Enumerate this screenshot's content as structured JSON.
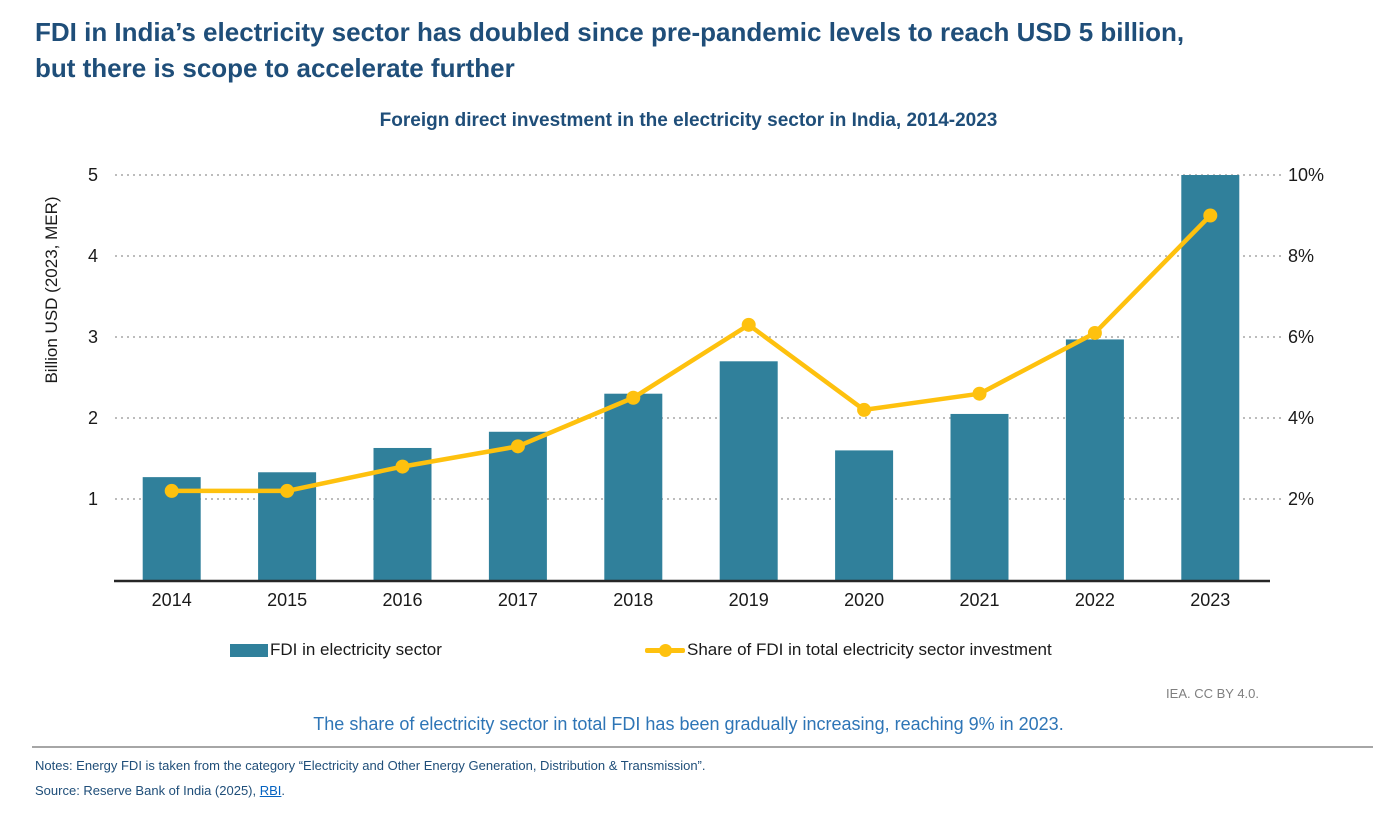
{
  "page": {
    "title_line1": "FDI in India’s electricity sector has doubled since pre-pandemic levels to reach USD 5 billion,",
    "title_line2": "but there is scope to accelerate further",
    "credit": "IEA. CC BY 4.0.",
    "caption": "The share of electricity sector in total FDI has been gradually increasing, reaching 9% in 2023.",
    "notes": "Notes: Energy FDI is taken from the category “Electricity and Other Energy Generation, Distribution & Transmission”.",
    "source_prefix": "Source: Reserve Bank of India (2025), ",
    "source_link": "RBI",
    "source_suffix": "."
  },
  "colors": {
    "bar": "#30809B",
    "line": "#FEC10E",
    "grid": "#A6A6A6",
    "axis": "#262626",
    "title_blue": "#1F4E79",
    "caption_blue": "#2E75B6"
  },
  "chart_data": {
    "type": "bar",
    "combo": "bar+line",
    "title": "Foreign direct investment in the electricity sector in India, 2014-2023",
    "categories": [
      "2014",
      "2015",
      "2016",
      "2017",
      "2018",
      "2019",
      "2020",
      "2021",
      "2022",
      "2023"
    ],
    "series": [
      {
        "name": "FDI in electricity sector",
        "type": "bar",
        "axis": "left",
        "values": [
          1.27,
          1.33,
          1.63,
          1.83,
          2.3,
          2.7,
          1.6,
          2.05,
          2.97,
          5.0
        ]
      },
      {
        "name": "Share of FDI in total electricity sector investment",
        "type": "line",
        "axis": "right",
        "values": [
          2.2,
          2.2,
          2.8,
          3.3,
          4.5,
          6.3,
          4.2,
          4.6,
          6.1,
          9.0
        ]
      }
    ],
    "left_axis": {
      "label": "Billion USD (2023, MER)",
      "ticks": [
        1,
        2,
        3,
        4,
        5
      ],
      "min": 0,
      "max": 5
    },
    "right_axis": {
      "tick_labels": [
        "2%",
        "4%",
        "6%",
        "8%",
        "10%"
      ],
      "tick_values": [
        2,
        4,
        6,
        8,
        10
      ],
      "min": 0,
      "max": 10
    },
    "grid": "horizontal dotted",
    "legend_position": "bottom"
  }
}
